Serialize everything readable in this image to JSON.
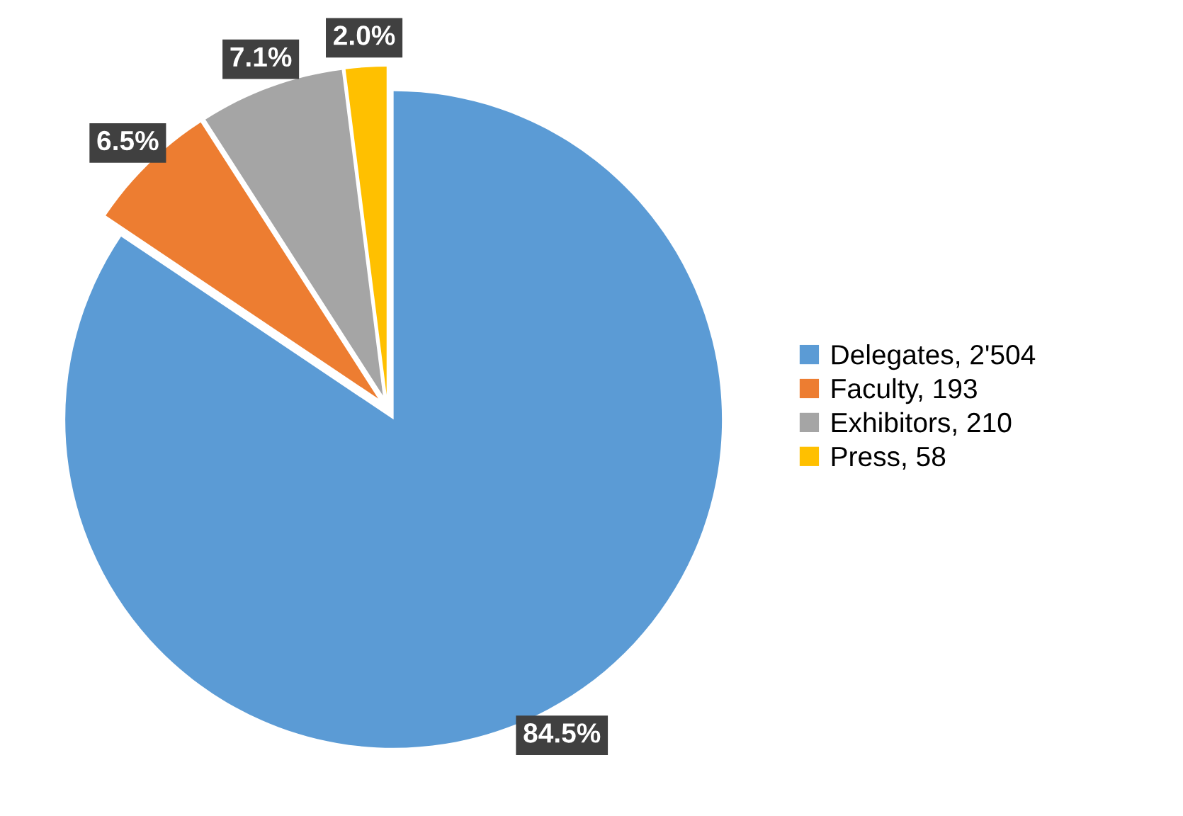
{
  "chart_data": {
    "type": "pie",
    "categories": [
      "Delegates, 2'504",
      "Faculty, 193",
      "Exhibitors, 210",
      "Press, 58"
    ],
    "values": [
      84.5,
      6.5,
      7.1,
      2.0
    ],
    "value_labels": [
      "84.5%",
      "6.5%",
      "7.1%",
      "2.0%"
    ],
    "colors": [
      "#5b9bd5",
      "#ed7d31",
      "#a5a5a5",
      "#ffc000"
    ],
    "legend": "right"
  }
}
